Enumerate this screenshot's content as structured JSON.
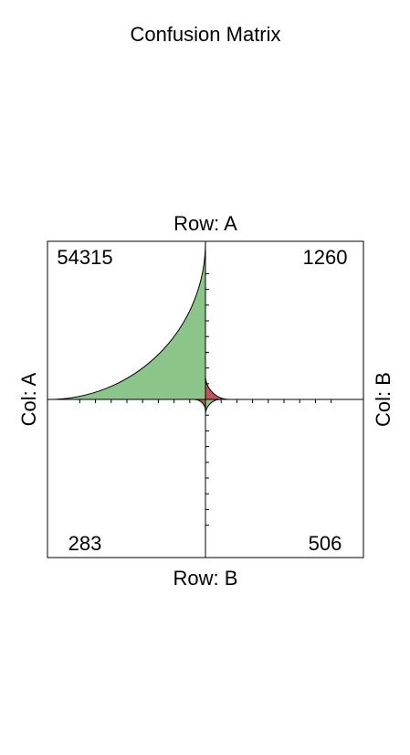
{
  "chart_data": {
    "type": "fourfold",
    "title": "Confusion Matrix",
    "row_labels": [
      "Row: A",
      "Row: B"
    ],
    "col_labels": [
      "Col: A",
      "Col: B"
    ],
    "cells": [
      {
        "row": "A",
        "col": "A",
        "quadrant": "top-left",
        "value": 54315,
        "color": "#8bc58a"
      },
      {
        "row": "A",
        "col": "B",
        "quadrant": "top-right",
        "value": 1260,
        "color": "#c0545a"
      },
      {
        "row": "B",
        "col": "A",
        "quadrant": "bottom-left",
        "value": 283,
        "color": "#c0545a"
      },
      {
        "row": "B",
        "col": "B",
        "quadrant": "bottom-right",
        "value": 506,
        "color": "#8bc58a"
      }
    ],
    "legend": "none",
    "grid": false
  }
}
